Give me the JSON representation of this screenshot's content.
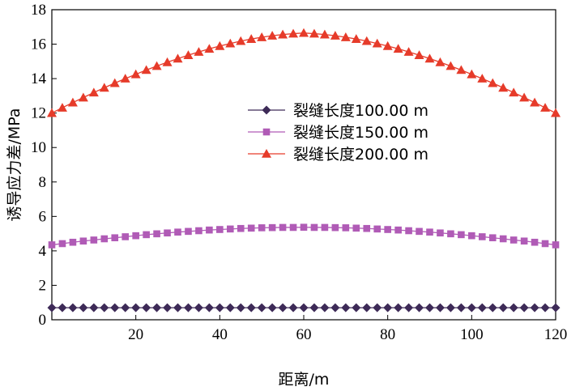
{
  "chart_data": {
    "type": "line",
    "xlabel": "距离/m",
    "ylabel": "诱导应力差/MPa",
    "xlim": [
      0,
      120
    ],
    "ylim": [
      0,
      18
    ],
    "xticks": [
      20,
      40,
      60,
      80,
      100,
      120
    ],
    "yticks": [
      0,
      2,
      4,
      6,
      8,
      10,
      12,
      14,
      16,
      18
    ],
    "grid": false,
    "legend_position": "center-right",
    "x": [
      0,
      2.5,
      5,
      7.5,
      10,
      12.5,
      15,
      17.5,
      20,
      22.5,
      25,
      27.5,
      30,
      32.5,
      35,
      37.5,
      40,
      42.5,
      45,
      47.5,
      50,
      52.5,
      55,
      57.5,
      60,
      62.5,
      65,
      67.5,
      70,
      72.5,
      75,
      77.5,
      80,
      82.5,
      85,
      87.5,
      90,
      92.5,
      95,
      97.5,
      100,
      102.5,
      105,
      107.5,
      110,
      112.5,
      115,
      117.5,
      120
    ],
    "series": [
      {
        "name": "裂缝长度100.00 m",
        "marker": "diamond",
        "color": "#3d2a57",
        "values": [
          0.7,
          0.7,
          0.7,
          0.7,
          0.7,
          0.7,
          0.7,
          0.7,
          0.7,
          0.7,
          0.7,
          0.7,
          0.7,
          0.7,
          0.7,
          0.7,
          0.7,
          0.7,
          0.7,
          0.7,
          0.7,
          0.7,
          0.7,
          0.7,
          0.7,
          0.7,
          0.7,
          0.7,
          0.7,
          0.7,
          0.7,
          0.7,
          0.7,
          0.7,
          0.7,
          0.7,
          0.7,
          0.7,
          0.7,
          0.7,
          0.7,
          0.7,
          0.7,
          0.7,
          0.7,
          0.7,
          0.7,
          0.7,
          0.7
        ]
      },
      {
        "name": "裂缝长度150.00 m",
        "marker": "square",
        "color": "#b05bb6",
        "values": [
          4.35,
          4.42,
          4.5,
          4.57,
          4.63,
          4.7,
          4.76,
          4.82,
          4.88,
          4.94,
          4.99,
          5.04,
          5.09,
          5.13,
          5.17,
          5.21,
          5.24,
          5.27,
          5.3,
          5.32,
          5.34,
          5.35,
          5.36,
          5.36,
          5.37,
          5.36,
          5.36,
          5.35,
          5.34,
          5.32,
          5.3,
          5.27,
          5.24,
          5.21,
          5.17,
          5.13,
          5.09,
          5.04,
          4.99,
          4.94,
          4.88,
          4.82,
          4.76,
          4.7,
          4.63,
          4.57,
          4.5,
          4.42,
          4.35
        ]
      },
      {
        "name": "裂缝长度200.00 m",
        "marker": "triangle",
        "color": "#e63b2a",
        "values": [
          12.0,
          12.31,
          12.61,
          12.9,
          13.19,
          13.47,
          13.74,
          14.0,
          14.25,
          14.5,
          14.73,
          14.95,
          15.16,
          15.36,
          15.55,
          15.73,
          15.89,
          16.04,
          16.18,
          16.3,
          16.4,
          16.49,
          16.56,
          16.61,
          16.65,
          16.61,
          16.56,
          16.49,
          16.4,
          16.3,
          16.18,
          16.04,
          15.89,
          15.73,
          15.55,
          15.36,
          15.16,
          14.95,
          14.73,
          14.5,
          14.25,
          14.0,
          13.74,
          13.47,
          13.19,
          12.9,
          12.61,
          12.31,
          12.0
        ]
      }
    ]
  }
}
